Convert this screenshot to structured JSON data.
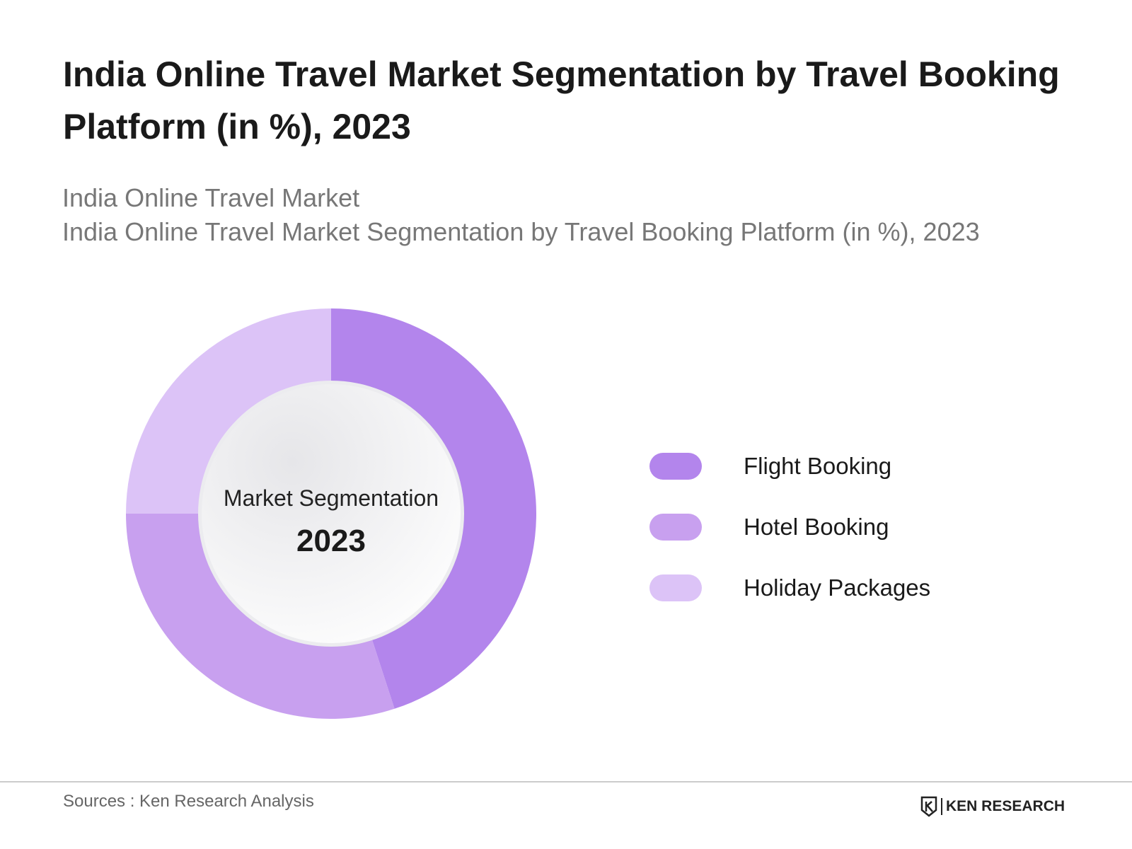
{
  "header": {
    "title": "India Online Travel Market Segmentation by Travel Booking Platform (in %), 2023",
    "subtitle_line1": "India Online Travel Market",
    "subtitle_line2": "India Online Travel Market Segmentation by Travel Booking Platform (in %), 2023"
  },
  "chart_data": {
    "type": "pie",
    "donut": true,
    "title": "India Online Travel Market Segmentation by Travel Booking Platform (in %), 2023",
    "center_label": "Market Segmentation",
    "center_value": "2023",
    "legend_position": "right",
    "categories": [
      "Flight Booking",
      "Hotel Booking",
      "Holiday Packages"
    ],
    "values": [
      45,
      30,
      25
    ],
    "colors": [
      "#b385ec",
      "#c8a0ef",
      "#dcc3f7"
    ]
  },
  "footer": {
    "source": "Sources : Ken Research Analysis",
    "logo_text": "KEN RESEARCH"
  }
}
